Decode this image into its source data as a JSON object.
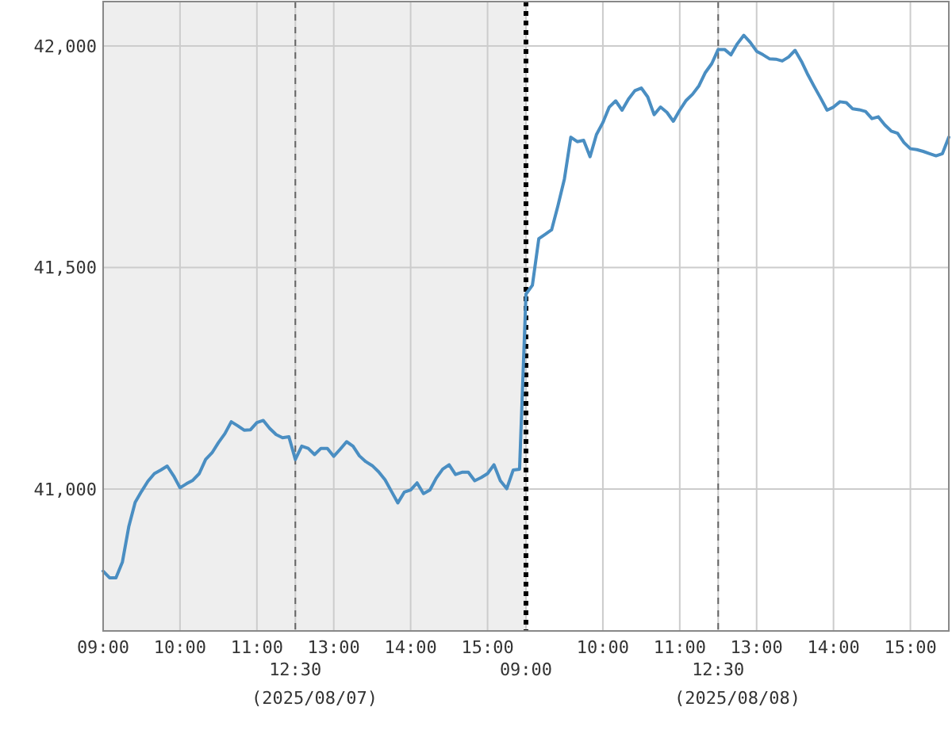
{
  "chart_data": {
    "type": "line",
    "ylim": [
      40680,
      42100
    ],
    "categories": [
      "09:00",
      null,
      null,
      null,
      null,
      null,
      null,
      null,
      null,
      null,
      null,
      null,
      "10:00",
      null,
      null,
      null,
      null,
      null,
      null,
      null,
      null,
      null,
      null,
      null,
      "11:00",
      null,
      null,
      null,
      null,
      null,
      "12:30",
      null,
      null,
      null,
      null,
      null,
      "13:00",
      null,
      null,
      null,
      null,
      null,
      null,
      null,
      null,
      null,
      null,
      null,
      "14:00",
      null,
      null,
      null,
      null,
      null,
      null,
      null,
      null,
      null,
      null,
      null,
      "15:00",
      null,
      null,
      null,
      null,
      null,
      "09:00",
      null,
      null,
      null,
      null,
      null,
      null,
      null,
      null,
      null,
      null,
      null,
      "10:00",
      null,
      null,
      null,
      null,
      null,
      null,
      null,
      null,
      null,
      null,
      null,
      "11:00",
      null,
      null,
      null,
      null,
      null,
      "12:30",
      null,
      null,
      null,
      null,
      null,
      "13:00",
      null,
      null,
      null,
      null,
      null,
      null,
      null,
      null,
      null,
      null,
      null,
      "14:00",
      null,
      null,
      null,
      null,
      null,
      null,
      null,
      null,
      null,
      null,
      null,
      "15:00",
      null,
      null,
      null,
      null,
      null,
      null
    ],
    "yticks": [
      {
        "value": 41000,
        "label": "41,000"
      },
      {
        "value": 41500,
        "label": "41,500"
      },
      {
        "value": 42000,
        "label": "42,000"
      }
    ],
    "grid": true,
    "annotations": [
      "(2025/08/07)",
      "(2025/08/08)"
    ],
    "series": [
      {
        "color": "#4a8ec2",
        "values": [
          40815,
          40800,
          40800,
          40835,
          40915,
          40970,
          40995,
          41018,
          41035,
          41043,
          41052,
          41030,
          41003,
          41012,
          41020,
          41035,
          41067,
          41082,
          41105,
          41125,
          41152,
          41143,
          41133,
          41134,
          41150,
          41155,
          41137,
          41123,
          41116,
          41118,
          41067,
          41097,
          41092,
          41078,
          41092,
          41092,
          41074,
          41090,
          41107,
          41097,
          41075,
          41062,
          41053,
          41039,
          41021,
          40995,
          40969,
          40993,
          40998,
          41014,
          40990,
          40998,
          41025,
          41045,
          41055,
          41033,
          41038,
          41038,
          41019,
          41026,
          41035,
          41055,
          41019,
          41001,
          41043,
          41045,
          41440,
          41460,
          41565,
          41575,
          41585,
          41640,
          41700,
          41794,
          41784,
          41787,
          41750,
          41800,
          41827,
          41862,
          41876,
          41855,
          41880,
          41899,
          41905,
          41885,
          41845,
          41862,
          41850,
          41830,
          41855,
          41877,
          41891,
          41910,
          41940,
          41960,
          41992,
          41992,
          41980,
          42005,
          42024,
          42008,
          41988,
          41980,
          41971,
          41970,
          41966,
          41975,
          41990,
          41965,
          41935,
          41908,
          41882,
          41855,
          41862,
          41874,
          41872,
          41858,
          41856,
          41852,
          41836,
          41840,
          41822,
          41808,
          41803,
          41782,
          41768,
          41766,
          41762,
          41757,
          41752,
          41757,
          41794
        ]
      }
    ]
  }
}
